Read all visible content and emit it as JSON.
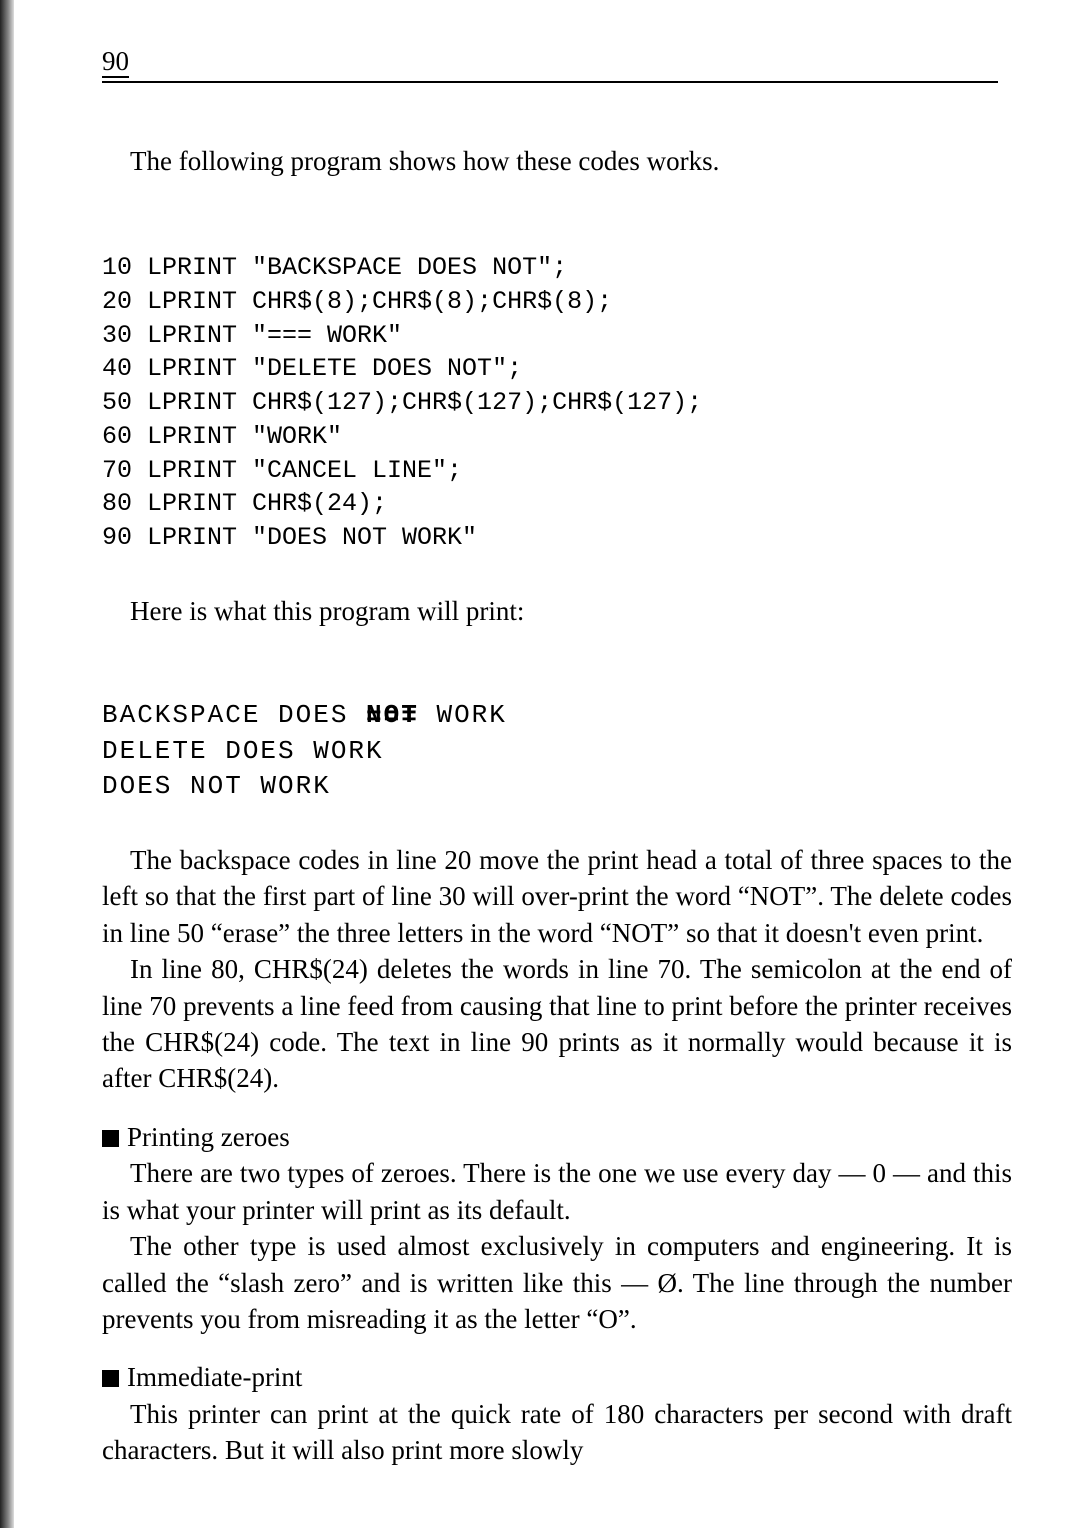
{
  "page_number": "90",
  "intro": "The following program shows how these codes works.",
  "code_lines": [
    "10 LPRINT \"BACKSPACE DOES NOT\";",
    "20 LPRINT CHR$(8);CHR$(8);CHR$(8);",
    "30 LPRINT \"=== WORK\"",
    "40 LPRINT \"DELETE DOES NOT\";",
    "50 LPRINT CHR$(127);CHR$(127);CHR$(127);",
    "60 LPRINT \"WORK\"",
    "70 LPRINT \"CANCEL LINE\";",
    "80 LPRINT CHR$(24);",
    "90 LPRINT \"DOES NOT WORK\""
  ],
  "output_intro": "Here is what this program will print:",
  "output_lines": {
    "l1a": "BACKSPACE DOES ",
    "l1b": "NOT",
    "l1c": " WORK",
    "l2": "DELETE DOES WORK",
    "l3": "DOES NOT WORK"
  },
  "para1": "The backspace codes in line 20 move the print head a total of three spaces to the left so that the first part of line 30 will over-print the word “NOT”. The delete codes in line 50 “erase” the three letters in the word “NOT” so that it doesn't even print.",
  "para2": "In line 80, CHR$(24) deletes the words in line 70. The semicolon at the end of line 70 prevents a line feed from causing that line to print before the printer receives the CHR$(24) code. The text in line 90 prints as it normally would because it is after CHR$(24).",
  "zeroes_head": "Printing zeroes",
  "zeroes_p1": "There are two types of zeroes. There is the one we use every day — 0 — and this is what your printer will print as its default.",
  "zeroes_p2": "The other type is used almost exclusively in computers and engineering. It is called the “slash zero” and is written like this — Ø. The line through the number prevents you from misreading it as the letter “O”.",
  "immediate_head": "Immediate-print",
  "immediate_p1": "This printer can print at the quick rate of 180 characters per second with draft characters. But it will also print more slowly"
}
